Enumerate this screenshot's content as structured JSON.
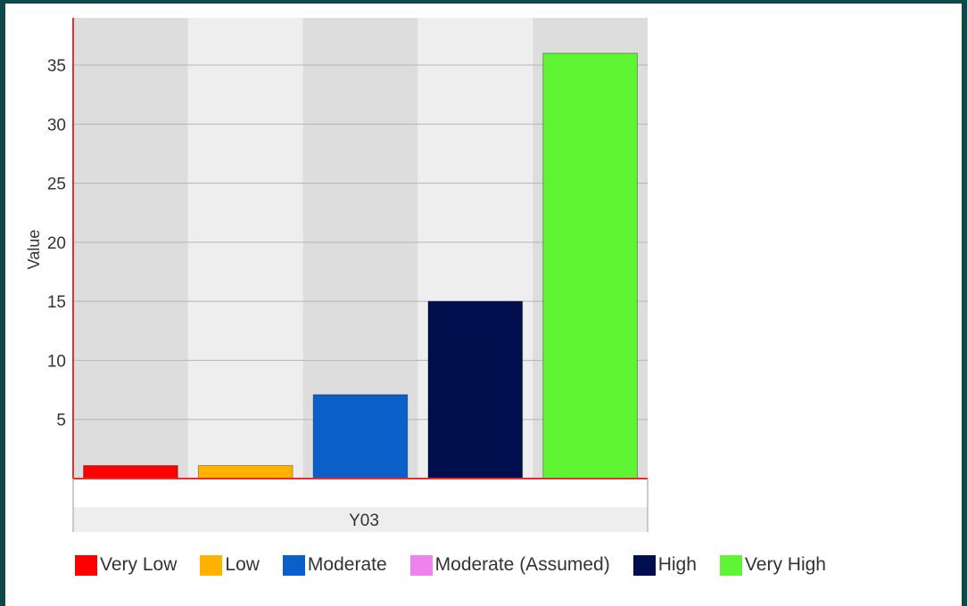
{
  "chart_data": {
    "type": "bar",
    "title": "",
    "xlabel": "",
    "ylabel": "Value",
    "category_group_label": "Y03",
    "ylim": [
      0,
      39
    ],
    "yticks": [
      5,
      10,
      15,
      20,
      25,
      30,
      35
    ],
    "grid": true,
    "legend_position": "bottom",
    "series": [
      {
        "name": "Very Low",
        "value": 1.1,
        "color": "#ff0000"
      },
      {
        "name": "Low",
        "value": 1.1,
        "color": "#ffb300"
      },
      {
        "name": "Moderate",
        "value": 7.1,
        "color": "#0a5fc9"
      },
      {
        "name": "High",
        "value": 15,
        "color": "#000e4d"
      },
      {
        "name": "Very High",
        "value": 36,
        "color": "#5ff535"
      }
    ],
    "legend": [
      {
        "label": "Very Low",
        "color": "#ff0000"
      },
      {
        "label": "Low",
        "color": "#ffb300"
      },
      {
        "label": "Moderate",
        "color": "#0a5fc9"
      },
      {
        "label": "Moderate (Assumed)",
        "color": "#ee82ee"
      },
      {
        "label": "High",
        "color": "#000e4d"
      },
      {
        "label": "Very High",
        "color": "#5ff535"
      }
    ]
  }
}
